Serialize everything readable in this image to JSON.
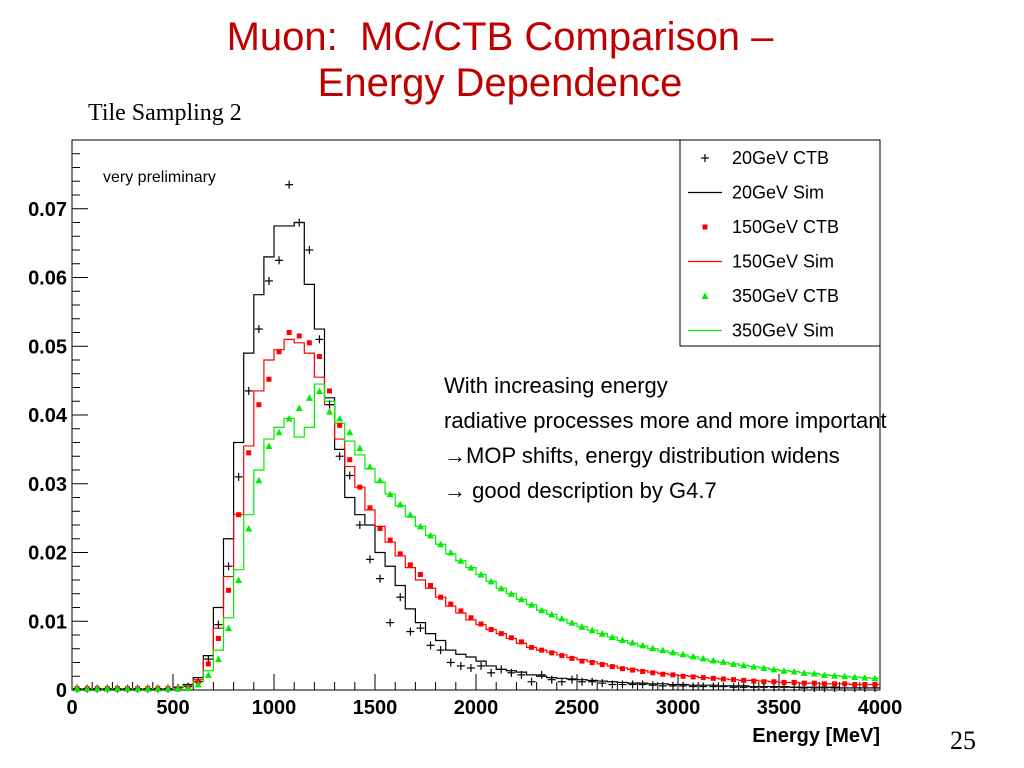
{
  "slide": {
    "title_line1": "Muon:  MC/CTB Comparison –",
    "title_line2": "Energy Dependence",
    "panel_label": "Tile Sampling 2",
    "annotation": "very preliminary",
    "notes": [
      "With increasing energy",
      "radiative processes more and more important",
      "→MOP shifts, energy distribution widens",
      "→ good description by G4.7"
    ],
    "page_number": "25"
  },
  "colors": {
    "title": "#c00000",
    "series_20": "#000000",
    "series_150": "#ff0000",
    "series_350": "#00ee00"
  },
  "chart_data": {
    "type": "line",
    "title": "",
    "xlabel": "Energy [MeV]",
    "ylabel": "",
    "xlim": [
      0,
      4000
    ],
    "ylim": [
      0,
      0.08
    ],
    "x_ticks": [
      0,
      500,
      1000,
      1500,
      2000,
      2500,
      3000,
      3500,
      4000
    ],
    "y_ticks": [
      0,
      0.01,
      0.02,
      0.03,
      0.04,
      0.05,
      0.06,
      0.07
    ],
    "y_tick_labels": [
      "0",
      "0.01",
      "0.02",
      "0.03",
      "0.04",
      "0.05",
      "0.06",
      "0.07"
    ],
    "legend_position": "top-right",
    "grid": false,
    "x": [
      25,
      75,
      125,
      175,
      225,
      275,
      325,
      375,
      425,
      475,
      525,
      575,
      625,
      675,
      725,
      775,
      825,
      875,
      925,
      975,
      1025,
      1075,
      1125,
      1175,
      1225,
      1275,
      1325,
      1375,
      1425,
      1475,
      1525,
      1575,
      1625,
      1675,
      1725,
      1775,
      1825,
      1875,
      1925,
      1975,
      2025,
      2075,
      2125,
      2175,
      2225,
      2275,
      2325,
      2375,
      2425,
      2475,
      2525,
      2575,
      2625,
      2675,
      2725,
      2775,
      2825,
      2875,
      2925,
      2975,
      3025,
      3075,
      3125,
      3175,
      3225,
      3275,
      3325,
      3375,
      3425,
      3475,
      3525,
      3575,
      3625,
      3675,
      3725,
      3775,
      3825,
      3875,
      3925,
      3975
    ],
    "series": [
      {
        "name": "20GeV CTB",
        "kind": "points",
        "marker": "cross",
        "color": "#000000",
        "values": [
          0.0002,
          0.0002,
          0.0002,
          0.0002,
          0.0002,
          0.0002,
          0.0002,
          0.0002,
          0.0002,
          0.0002,
          0.0003,
          0.0005,
          0.0012,
          0.0045,
          0.0095,
          0.018,
          0.031,
          0.0435,
          0.0525,
          0.0595,
          0.0625,
          0.0735,
          0.068,
          0.064,
          0.051,
          0.0415,
          0.034,
          0.0312,
          0.024,
          0.019,
          0.0162,
          0.0098,
          0.0135,
          0.0085,
          0.009,
          0.0065,
          0.0058,
          0.004,
          0.0035,
          0.0032,
          0.0035,
          0.0025,
          0.003,
          0.0025,
          0.0022,
          0.0012,
          0.0022,
          0.0015,
          0.0012,
          0.0015,
          0.0012,
          0.0012,
          0.001,
          0.0008,
          0.0008,
          0.0008,
          0.0008,
          0.0007,
          0.0006,
          0.0006,
          0.0006,
          0.0005,
          0.0005,
          0.0005,
          0.0005,
          0.0004,
          0.0004,
          0.0004,
          0.0004,
          0.0004,
          0.0004,
          0.0004,
          0.0003,
          0.0003,
          0.0003,
          0.0003,
          0.0003,
          0.0003,
          0.0003,
          0.0003
        ]
      },
      {
        "name": "20GeV Sim",
        "kind": "step",
        "color": "#000000",
        "values": [
          0.0002,
          0.0002,
          0.0002,
          0.0002,
          0.0002,
          0.0002,
          0.0002,
          0.0002,
          0.0002,
          0.0002,
          0.0004,
          0.0008,
          0.0018,
          0.005,
          0.012,
          0.022,
          0.036,
          0.049,
          0.0575,
          0.063,
          0.0675,
          0.0675,
          0.068,
          0.059,
          0.0525,
          0.0425,
          0.035,
          0.028,
          0.0255,
          0.024,
          0.02,
          0.018,
          0.0152,
          0.0118,
          0.0098,
          0.0082,
          0.0072,
          0.0058,
          0.0052,
          0.0048,
          0.0042,
          0.0035,
          0.003,
          0.0028,
          0.0026,
          0.0022,
          0.002,
          0.0018,
          0.0017,
          0.0016,
          0.0015,
          0.0014,
          0.0013,
          0.0012,
          0.0011,
          0.001,
          0.001,
          0.0009,
          0.0009,
          0.0008,
          0.0008,
          0.0007,
          0.0007,
          0.0007,
          0.0006,
          0.0006,
          0.0006,
          0.0005,
          0.0005,
          0.0005,
          0.0005,
          0.0004,
          0.0004,
          0.0004,
          0.0004,
          0.0004,
          0.0003,
          0.0003,
          0.0003,
          0.0003
        ]
      },
      {
        "name": "150GeV CTB",
        "kind": "points",
        "marker": "square",
        "color": "#ff0000",
        "values": [
          0.0002,
          0.0002,
          0.0002,
          0.0002,
          0.0002,
          0.0002,
          0.0002,
          0.0002,
          0.0002,
          0.0002,
          0.0002,
          0.0004,
          0.0012,
          0.0038,
          0.0075,
          0.0145,
          0.0255,
          0.0345,
          0.0415,
          0.0452,
          0.0492,
          0.052,
          0.0515,
          0.0505,
          0.0485,
          0.0435,
          0.0385,
          0.0335,
          0.0295,
          0.0265,
          0.0235,
          0.0218,
          0.0198,
          0.0182,
          0.0168,
          0.0152,
          0.0135,
          0.0125,
          0.0115,
          0.0105,
          0.0096,
          0.0088,
          0.0082,
          0.0076,
          0.007,
          0.0062,
          0.0058,
          0.0054,
          0.005,
          0.0046,
          0.0042,
          0.004,
          0.0037,
          0.0034,
          0.0031,
          0.0029,
          0.0027,
          0.0025,
          0.0023,
          0.0022,
          0.002,
          0.0019,
          0.0018,
          0.0017,
          0.0016,
          0.0015,
          0.0014,
          0.0013,
          0.0012,
          0.0012,
          0.0011,
          0.0011,
          0.001,
          0.001,
          0.0009,
          0.0009,
          0.0009,
          0.0008,
          0.0008,
          0.0008
        ]
      },
      {
        "name": "150GeV Sim",
        "kind": "step",
        "color": "#ff0000",
        "values": [
          0.0002,
          0.0002,
          0.0002,
          0.0002,
          0.0002,
          0.0002,
          0.0002,
          0.0002,
          0.0002,
          0.0002,
          0.0003,
          0.0006,
          0.0015,
          0.0045,
          0.009,
          0.0165,
          0.0255,
          0.0355,
          0.0435,
          0.048,
          0.0495,
          0.051,
          0.0505,
          0.049,
          0.0455,
          0.0415,
          0.0365,
          0.0325,
          0.0295,
          0.0262,
          0.0238,
          0.0215,
          0.0195,
          0.0178,
          0.016,
          0.0148,
          0.0135,
          0.0122,
          0.0112,
          0.0102,
          0.0095,
          0.0088,
          0.0082,
          0.0075,
          0.0068,
          0.0062,
          0.0058,
          0.0055,
          0.0051,
          0.0047,
          0.0044,
          0.0041,
          0.0038,
          0.0035,
          0.0032,
          0.003,
          0.0028,
          0.0026,
          0.0024,
          0.0022,
          0.0021,
          0.002,
          0.0018,
          0.0017,
          0.0016,
          0.0015,
          0.0014,
          0.0014,
          0.0013,
          0.0012,
          0.0011,
          0.0011,
          0.001,
          0.001,
          0.0009,
          0.0009,
          0.0009,
          0.0008,
          0.0008,
          0.0008
        ]
      },
      {
        "name": "350GeV CTB",
        "kind": "points",
        "marker": "triangle",
        "color": "#00ee00",
        "values": [
          0.0002,
          0.0002,
          0.0002,
          0.0002,
          0.0002,
          0.0002,
          0.0002,
          0.0002,
          0.0002,
          0.0002,
          0.0002,
          0.0003,
          0.0008,
          0.0022,
          0.0045,
          0.009,
          0.016,
          0.0235,
          0.0305,
          0.0355,
          0.0375,
          0.0395,
          0.041,
          0.0425,
          0.0435,
          0.0405,
          0.0395,
          0.0375,
          0.0352,
          0.0325,
          0.0305,
          0.0285,
          0.027,
          0.0255,
          0.0238,
          0.0225,
          0.0212,
          0.02,
          0.0188,
          0.0178,
          0.0168,
          0.0158,
          0.0148,
          0.014,
          0.0132,
          0.0124,
          0.0116,
          0.011,
          0.0104,
          0.0098,
          0.0092,
          0.0087,
          0.0082,
          0.0077,
          0.0073,
          0.0069,
          0.0065,
          0.0061,
          0.0058,
          0.0055,
          0.0052,
          0.0049,
          0.0046,
          0.0043,
          0.0041,
          0.0038,
          0.0036,
          0.0034,
          0.0032,
          0.003,
          0.0028,
          0.0027,
          0.0025,
          0.0024,
          0.0022,
          0.0021,
          0.002,
          0.0019,
          0.0018,
          0.0017
        ]
      },
      {
        "name": "350GeV Sim",
        "kind": "step",
        "color": "#00ee00",
        "values": [
          0.0002,
          0.0002,
          0.0002,
          0.0002,
          0.0002,
          0.0002,
          0.0002,
          0.0002,
          0.0002,
          0.0002,
          0.0003,
          0.0006,
          0.0012,
          0.0028,
          0.0058,
          0.0105,
          0.0175,
          0.0255,
          0.032,
          0.0365,
          0.0382,
          0.0395,
          0.0368,
          0.0382,
          0.0445,
          0.042,
          0.0388,
          0.0362,
          0.0342,
          0.0322,
          0.0302,
          0.0285,
          0.0268,
          0.0252,
          0.0238,
          0.0225,
          0.0212,
          0.0198,
          0.0188,
          0.0178,
          0.0168,
          0.0158,
          0.0148,
          0.014,
          0.0132,
          0.0124,
          0.0116,
          0.011,
          0.0103,
          0.0097,
          0.0092,
          0.0087,
          0.0082,
          0.0077,
          0.0072,
          0.0068,
          0.0064,
          0.006,
          0.0057,
          0.0054,
          0.0051,
          0.0048,
          0.0045,
          0.0042,
          0.004,
          0.0038,
          0.0036,
          0.0034,
          0.0032,
          0.003,
          0.0028,
          0.0027,
          0.0025,
          0.0024,
          0.0022,
          0.0021,
          0.002,
          0.0019,
          0.0018,
          0.0017
        ]
      }
    ]
  }
}
